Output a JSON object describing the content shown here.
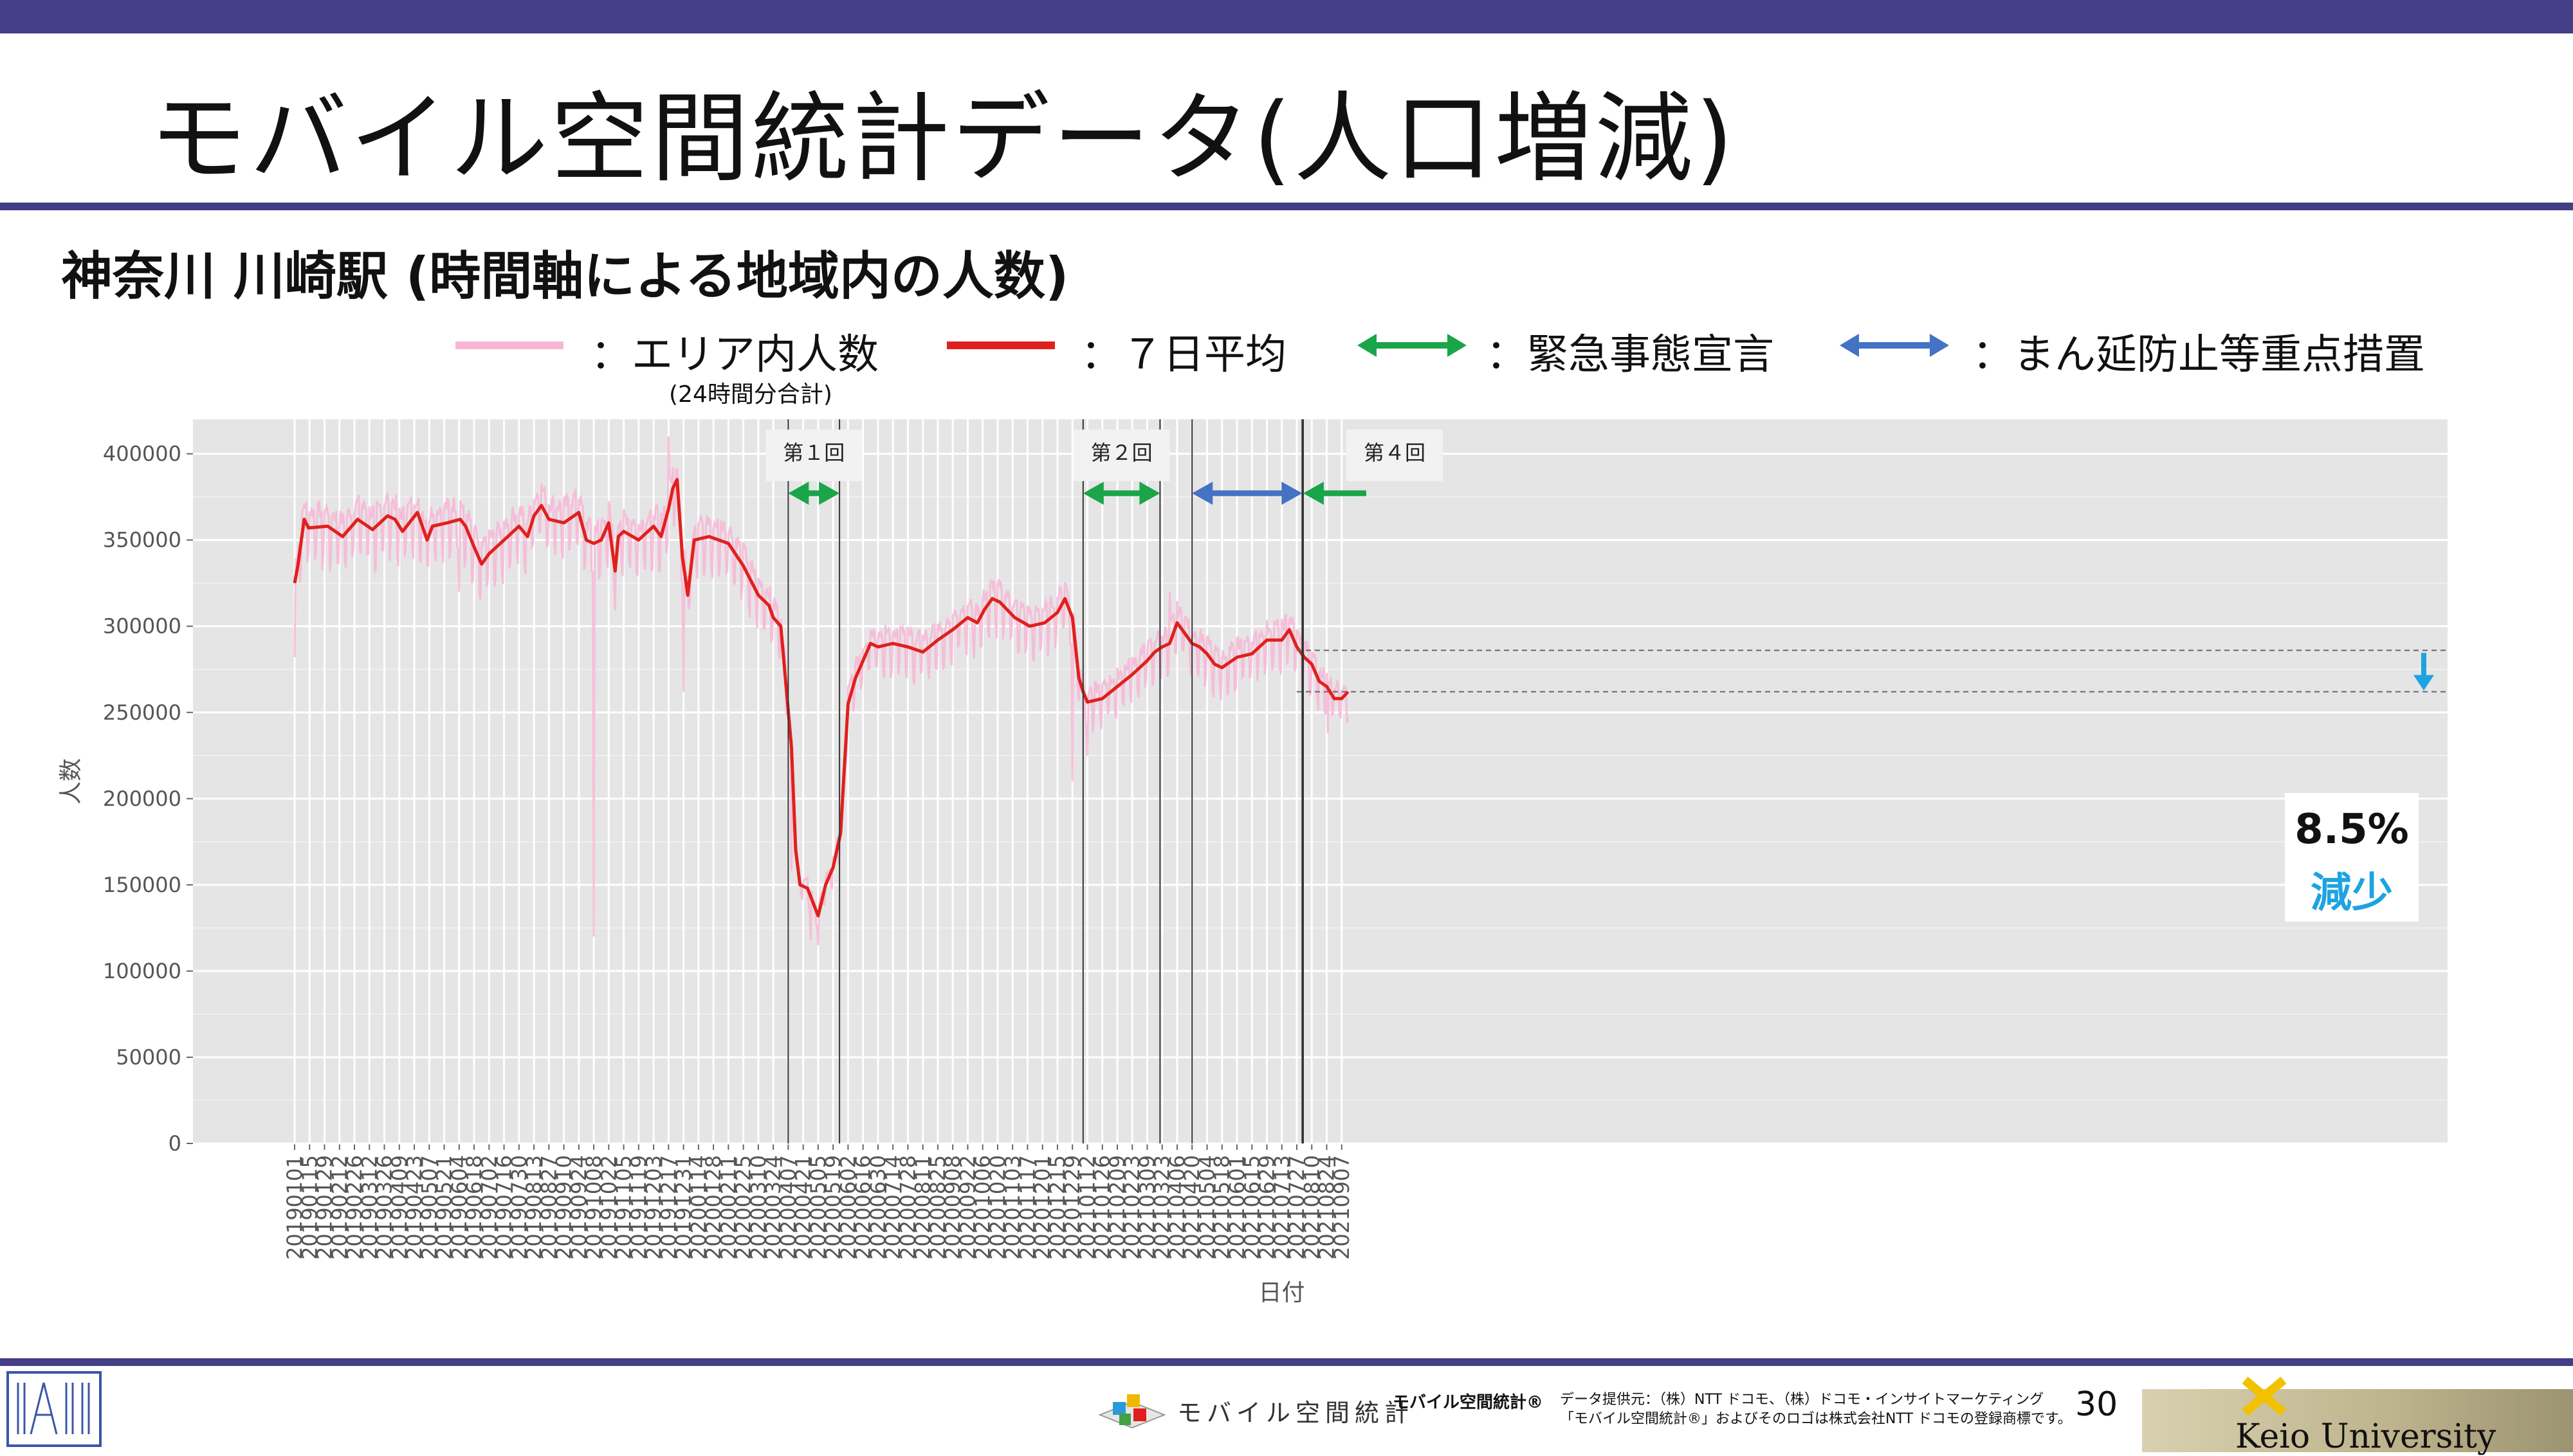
{
  "slide": {
    "title": "モバイル空間統計データ(人口増減)",
    "subtitle": "神奈川 川崎駅 (時間軸による地域内の人数)",
    "page_number": "30"
  },
  "legend": {
    "area_label": "：エリア内人数",
    "area_note": "(24時間分合計)",
    "avg_label": "：７日平均",
    "emergency_label": "：緊急事態宣言",
    "manen_label": "：まん延防止等重点措置",
    "colors": {
      "area": "#f8b6d6",
      "avg": "#e0201c",
      "emergency": "#1aa54a",
      "manen": "#4472c4"
    }
  },
  "annotation": {
    "percent": "8.5%",
    "word": "減少"
  },
  "footer": {
    "brand_text": "モバイル空間統計",
    "mark_text": "モバイル空間統計®",
    "credit_line1": "データ提供元：（株）NTT ドコモ、（株）ドコモ・インサイトマーケティング",
    "credit_line2": "「モバイル空間統計®」およびそのロゴは株式会社NTT ドコモの登録商標です。",
    "university": "Keio University"
  },
  "chart_data": {
    "type": "line",
    "xlabel": "日付",
    "ylabel": "人数",
    "ylim": [
      0,
      420000
    ],
    "yticks": [
      0,
      50000,
      100000,
      150000,
      200000,
      250000,
      300000,
      350000,
      400000
    ],
    "grid": true,
    "x_start": "20190101",
    "x_end": "20210913",
    "xtick_labels": [
      "20190101",
      "20190115",
      "20190129",
      "20190212",
      "20190226",
      "20190312",
      "20190326",
      "20190409",
      "20190423",
      "20190507",
      "20190521",
      "20190604",
      "20190618",
      "20190702",
      "20190716",
      "20190730",
      "20190813",
      "20190827",
      "20190910",
      "20190924",
      "20191008",
      "20191022",
      "20191105",
      "20191119",
      "20191203",
      "20191217",
      "20191231",
      "20200114",
      "20200128",
      "20200211",
      "20200225",
      "20200310",
      "20200324",
      "20200407",
      "20200421",
      "20200505",
      "20200519",
      "20200602",
      "20200616",
      "20200630",
      "20200714",
      "20200728",
      "20200811",
      "20200825",
      "20200908",
      "20200922",
      "20201006",
      "20201020",
      "20201103",
      "20201117",
      "20201201",
      "20201215",
      "20201229",
      "20210112",
      "20210126",
      "20210209",
      "20210223",
      "20210309",
      "20210323",
      "20210406",
      "20210420",
      "20210504",
      "20210518",
      "20210601",
      "20210615",
      "20210629",
      "20210713",
      "20210727",
      "20210810",
      "20210824",
      "20210907"
    ],
    "series": [
      {
        "name": "7日平均",
        "color": "#e0201c",
        "points": [
          [
            "20190101",
            325000
          ],
          [
            "20190104",
            335000
          ],
          [
            "20190110",
            362000
          ],
          [
            "20190114",
            357000
          ],
          [
            "20190201",
            358000
          ],
          [
            "20190215",
            352000
          ],
          [
            "20190301",
            362000
          ],
          [
            "20190315",
            356000
          ],
          [
            "20190329",
            364000
          ],
          [
            "20190405",
            362000
          ],
          [
            "20190412",
            355000
          ],
          [
            "20190426",
            366000
          ],
          [
            "20190505",
            350000
          ],
          [
            "20190510",
            358000
          ],
          [
            "20190524",
            360000
          ],
          [
            "20190605",
            362000
          ],
          [
            "20190610",
            358000
          ],
          [
            "20190618",
            346000
          ],
          [
            "20190625",
            336000
          ],
          [
            "20190702",
            342000
          ],
          [
            "20190716",
            350000
          ],
          [
            "20190730",
            358000
          ],
          [
            "20190807",
            352000
          ],
          [
            "20190813",
            364000
          ],
          [
            "20190820",
            370000
          ],
          [
            "20190827",
            362000
          ],
          [
            "20190910",
            360000
          ],
          [
            "20190924",
            366000
          ],
          [
            "20191001",
            350000
          ],
          [
            "20191008",
            348000
          ],
          [
            "20191015",
            350000
          ],
          [
            "20191022",
            360000
          ],
          [
            "20191028",
            332000
          ],
          [
            "20191031",
            352000
          ],
          [
            "20191105",
            355000
          ],
          [
            "20191119",
            350000
          ],
          [
            "20191203",
            358000
          ],
          [
            "20191210",
            352000
          ],
          [
            "20191217",
            368000
          ],
          [
            "20191221",
            380000
          ],
          [
            "20191225",
            385000
          ],
          [
            "20191230",
            340000
          ],
          [
            "20200104",
            318000
          ],
          [
            "20200110",
            350000
          ],
          [
            "20200124",
            352000
          ],
          [
            "20200211",
            348000
          ],
          [
            "20200225",
            335000
          ],
          [
            "20200310",
            318000
          ],
          [
            "20200320",
            312000
          ],
          [
            "20200324",
            305000
          ],
          [
            "20200331",
            300000
          ],
          [
            "20200405",
            265000
          ],
          [
            "20200410",
            230000
          ],
          [
            "20200414",
            170000
          ],
          [
            "20200418",
            150000
          ],
          [
            "20200425",
            148000
          ],
          [
            "20200505",
            132000
          ],
          [
            "20200512",
            150000
          ],
          [
            "20200519",
            160000
          ],
          [
            "20200526",
            180000
          ],
          [
            "20200602",
            255000
          ],
          [
            "20200609",
            270000
          ],
          [
            "20200616",
            280000
          ],
          [
            "20200623",
            290000
          ],
          [
            "20200630",
            288000
          ],
          [
            "20200714",
            290000
          ],
          [
            "20200728",
            288000
          ],
          [
            "20200811",
            285000
          ],
          [
            "20200825",
            292000
          ],
          [
            "20200908",
            298000
          ],
          [
            "20200922",
            305000
          ],
          [
            "20201001",
            302000
          ],
          [
            "20201008",
            310000
          ],
          [
            "20201015",
            316000
          ],
          [
            "20201022",
            314000
          ],
          [
            "20201105",
            305000
          ],
          [
            "20201119",
            300000
          ],
          [
            "20201203",
            302000
          ],
          [
            "20201215",
            308000
          ],
          [
            "20201222",
            316000
          ],
          [
            "20201229",
            305000
          ],
          [
            "20210104",
            270000
          ],
          [
            "20210108",
            262000
          ],
          [
            "20210112",
            256000
          ],
          [
            "20210126",
            258000
          ],
          [
            "20210209",
            265000
          ],
          [
            "20210223",
            272000
          ],
          [
            "20210309",
            280000
          ],
          [
            "20210316",
            285000
          ],
          [
            "20210323",
            288000
          ],
          [
            "20210330",
            290000
          ],
          [
            "20210406",
            302000
          ],
          [
            "20210413",
            296000
          ],
          [
            "20210420",
            290000
          ],
          [
            "20210427",
            288000
          ],
          [
            "20210504",
            284000
          ],
          [
            "20210511",
            278000
          ],
          [
            "20210518",
            276000
          ],
          [
            "20210525",
            279000
          ],
          [
            "20210601",
            282000
          ],
          [
            "20210615",
            284000
          ],
          [
            "20210629",
            292000
          ],
          [
            "20210713",
            292000
          ],
          [
            "20210720",
            298000
          ],
          [
            "20210727",
            288000
          ],
          [
            "20210803",
            282000
          ],
          [
            "20210810",
            278000
          ],
          [
            "20210817",
            268000
          ],
          [
            "20210824",
            265000
          ],
          [
            "20210831",
            258000
          ],
          [
            "20210907",
            258000
          ],
          [
            "20210913",
            262000
          ]
        ]
      },
      {
        "name": "エリア内人数",
        "color": "#f8b6d6",
        "description_free": true,
        "spikes": [
          [
            "20191008",
            120000
          ],
          [
            "20190604",
            320000
          ],
          [
            "20191231",
            262000
          ],
          [
            "20200410",
            158000
          ],
          [
            "20200428",
            118000
          ],
          [
            "20200505",
            115000
          ],
          [
            "20201229",
            210000
          ],
          [
            "20210112",
            225000
          ],
          [
            "20210825",
            238000
          ],
          [
            "20190101",
            282000
          ],
          [
            "20191217",
            410000
          ],
          [
            "20210330",
            320000
          ]
        ]
      }
    ],
    "events": [
      {
        "label": "第１回",
        "type": "緊急事態宣言",
        "start": "20200407",
        "end": "20200525"
      },
      {
        "label": "第２回",
        "type": "緊急事態宣言",
        "start": "20210108",
        "end": "20210321"
      },
      {
        "label": "",
        "type": "まん延防止等重点措置",
        "start": "20210420",
        "end": "20210801"
      },
      {
        "label": "第４回",
        "type": "緊急事態宣言",
        "start": "20210802",
        "end": "20210930"
      }
    ],
    "change": {
      "from": 286000,
      "to": 262000,
      "percent": "8.5%",
      "direction": "減少"
    }
  }
}
